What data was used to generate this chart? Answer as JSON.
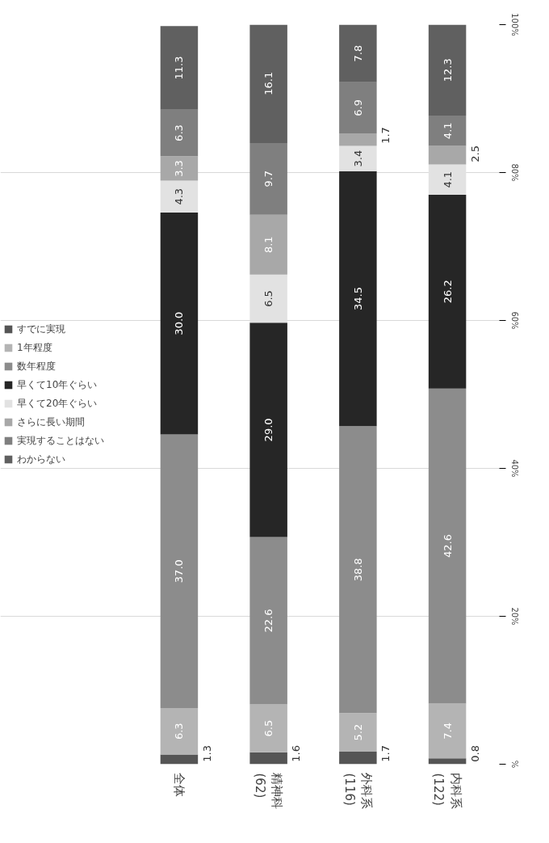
{
  "chart_data": {
    "type": "bar",
    "stacked": true,
    "categories": [
      "全体",
      "精神科\n(62)",
      "外科系\n(116)",
      "内科系\n(122)"
    ],
    "series": [
      {
        "name": "すでに実現",
        "color": "#555555",
        "values": [
          1.3,
          1.6,
          1.7,
          0.8
        ],
        "value_labels": [
          "1.3",
          "1.6",
          "1.7",
          "0.8"
        ]
      },
      {
        "name": "1年程度",
        "color": "#b4b4b4",
        "values": [
          6.3,
          6.5,
          5.2,
          7.4
        ],
        "value_labels": [
          "6.3",
          "6.5",
          "5.2",
          "7.4"
        ]
      },
      {
        "name": "数年程度",
        "color": "#8c8c8c",
        "values": [
          37.0,
          22.6,
          38.8,
          42.6
        ],
        "value_labels": [
          "37.0",
          "22.6",
          "38.8",
          "42.6"
        ]
      },
      {
        "name": "早くて10年ぐらい",
        "color": "#262626",
        "values": [
          30.0,
          29.0,
          34.5,
          26.2
        ],
        "value_labels": [
          "30.0",
          "29.0",
          "34.5",
          "26.2"
        ]
      },
      {
        "name": "早くて20年ぐらい",
        "color": "#e2e2e2",
        "values": [
          4.3,
          6.5,
          3.4,
          4.1
        ],
        "value_labels": [
          "4.3",
          "6.5",
          "3.4",
          "4.1"
        ]
      },
      {
        "name": "さらに長い期間",
        "color": "#a8a8a8",
        "values": [
          3.3,
          8.1,
          1.7,
          2.5
        ],
        "value_labels": [
          "3.3",
          "8.1",
          "1.7",
          "2.5"
        ]
      },
      {
        "name": "実現することはない",
        "color": "#7f7f7f",
        "values": [
          6.3,
          9.7,
          6.9,
          4.1
        ],
        "value_labels": [
          "6.3",
          "9.7",
          "6.9",
          "4.1"
        ]
      },
      {
        "name": "わからない",
        "color": "#606060",
        "values": [
          11.3,
          16.1,
          7.8,
          12.3
        ],
        "value_labels": [
          "11.3",
          "16.1",
          "7.8",
          "12.3"
        ]
      }
    ],
    "ylim": [
      0,
      100
    ],
    "yticks": [
      {
        "value": 0,
        "label": "%"
      },
      {
        "value": 20,
        "label": "20%"
      },
      {
        "value": 40,
        "label": "40%"
      },
      {
        "value": 60,
        "label": "60%"
      },
      {
        "value": 80,
        "label": "80%"
      },
      {
        "value": 100,
        "label": "100%"
      }
    ],
    "grid": "y",
    "legend": "left"
  }
}
